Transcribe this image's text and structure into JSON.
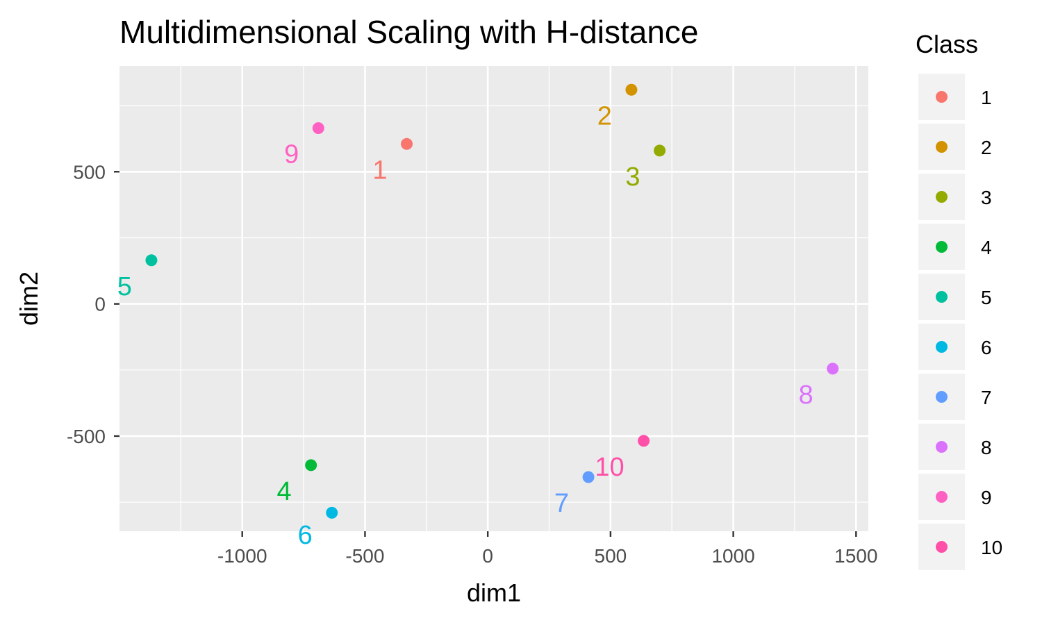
{
  "chart_data": {
    "type": "scatter",
    "title": "Multidimensional Scaling with H-distance",
    "xlabel": "dim1",
    "ylabel": "dim2",
    "xlim": [
      -1500,
      1550
    ],
    "ylim": [
      -860,
      900
    ],
    "xticks": [
      {
        "value": -1000,
        "label": "-1000"
      },
      {
        "value": -500,
        "label": "-500"
      },
      {
        "value": 0,
        "label": "0"
      },
      {
        "value": 500,
        "label": "500"
      },
      {
        "value": 1000,
        "label": "1000"
      },
      {
        "value": 1500,
        "label": "1500"
      }
    ],
    "yticks": [
      {
        "value": -500,
        "label": "-500"
      },
      {
        "value": 0,
        "label": "0"
      },
      {
        "value": 500,
        "label": "500"
      }
    ],
    "grid": true,
    "legend": {
      "title": "Class",
      "position": "right"
    },
    "series": [
      {
        "name": "1",
        "color": "#F8766D",
        "x": -330,
        "y": 605
      },
      {
        "name": "2",
        "color": "#D39200",
        "x": 585,
        "y": 810
      },
      {
        "name": "3",
        "color": "#93AA00",
        "x": 700,
        "y": 580
      },
      {
        "name": "4",
        "color": "#00BA38",
        "x": -720,
        "y": -610
      },
      {
        "name": "5",
        "color": "#00C19F",
        "x": -1370,
        "y": 165
      },
      {
        "name": "6",
        "color": "#00B9E3",
        "x": -635,
        "y": -790
      },
      {
        "name": "7",
        "color": "#619CFF",
        "x": 410,
        "y": -655
      },
      {
        "name": "8",
        "color": "#DB72FB",
        "x": 1405,
        "y": -245
      },
      {
        "name": "9",
        "color": "#FF61C3",
        "x": -690,
        "y": 665
      },
      {
        "name": "10",
        "color": "#FF4FA8",
        "x": 635,
        "y": -518
      }
    ]
  }
}
